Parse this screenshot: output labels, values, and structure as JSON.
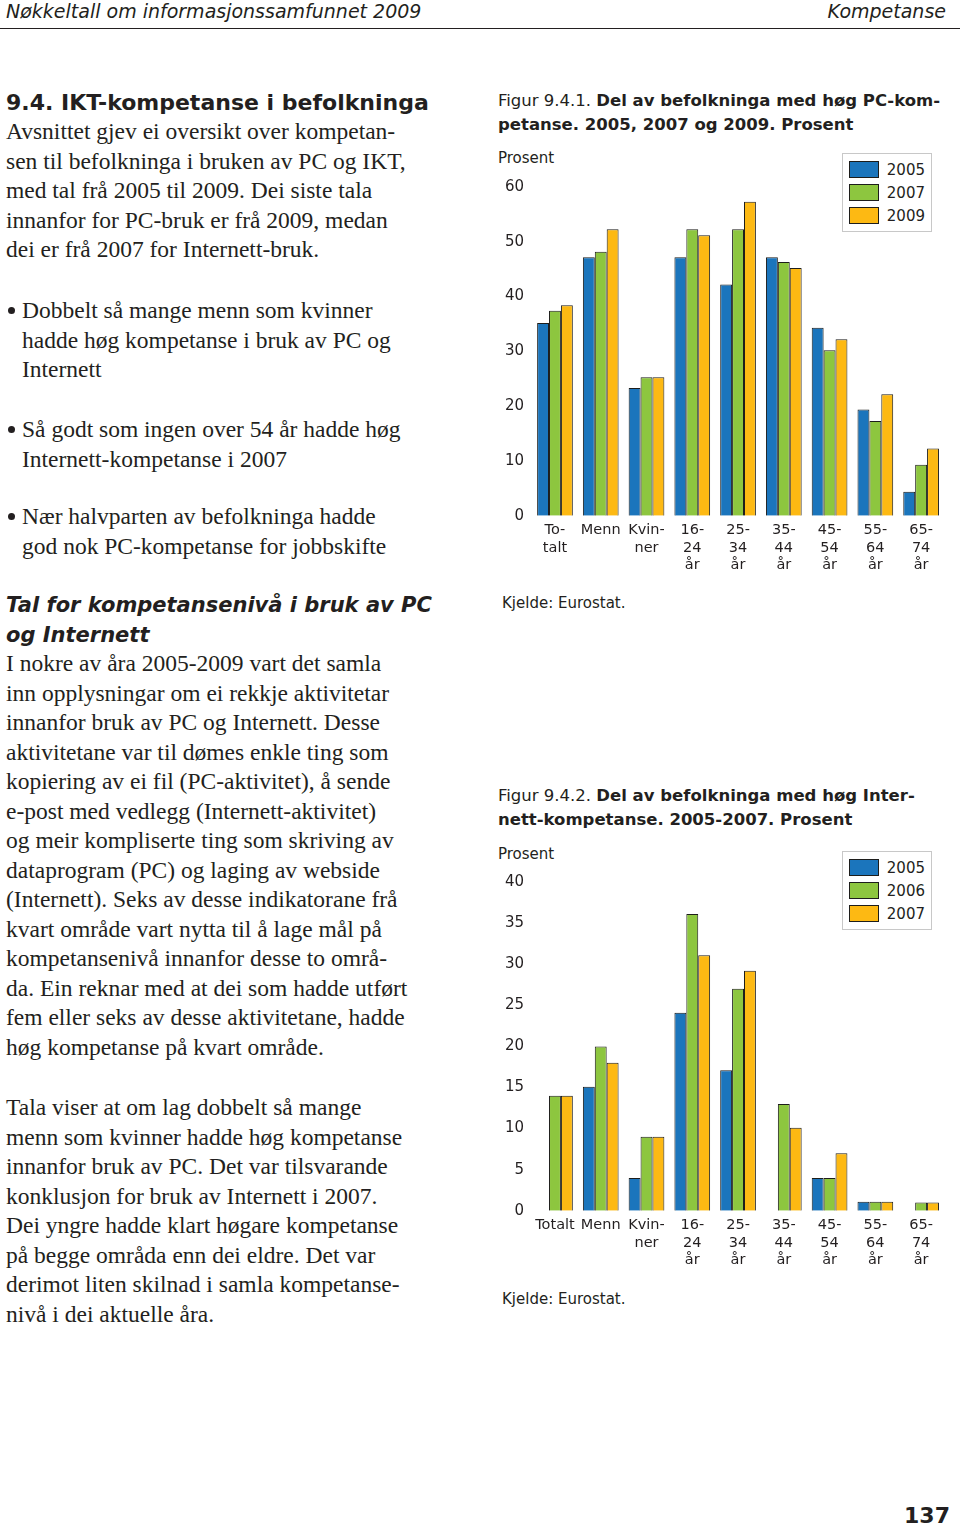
{
  "header": {
    "left": "Nøkkeltall om informasjonssamfunnet 2009",
    "right": "Kompetanse"
  },
  "section": {
    "heading": "9.4. IKT-kompetanse i befolkninga",
    "intro": [
      "Avsnittet gjev ei oversikt over kompetan-",
      "sen til befolkninga i bruken av PC og IKT,",
      "med tal frå 2005 til 2009. Dei siste tala",
      "innanfor for PC-bruk er frå 2009, medan",
      "dei er frå 2007 for Internett-bruk."
    ],
    "bullets": [
      [
        "Dobbelt så mange menn som kvinner",
        "hadde høg kompetanse i bruk av PC og",
        "Internett"
      ],
      [
        "Så godt som ingen over 54 år hadde høg",
        "Internett-kompetanse i 2007"
      ],
      [
        "Nær halvparten av befolkninga hadde",
        "god nok PC-kompetanse for jobbskifte"
      ]
    ],
    "subheading": [
      "Tal for kompetansenivå i bruk av PC",
      "og Internett"
    ],
    "paragraphs": [
      [
        "I nokre av åra 2005-2009 vart det samla",
        "inn opplysningar om ei rekkje aktivitetar",
        "innanfor bruk av PC og Internett. Desse",
        "aktivitetane var til dømes enkle ting som",
        "kopiering av ei fil (PC-aktivitet), å sende",
        "e-post med vedlegg (Internett-aktivitet)",
        "og meir kompliserte ting som skriving av",
        "dataprogram (PC) og laging av webside",
        "(Internett). Seks av desse indikatorane frå",
        "kvart område vart nytta til å lage mål på",
        "kompetansenivå innanfor desse to områ-",
        "da. Ein reknar med at dei som hadde utført",
        "fem eller seks av desse aktivitetane, hadde",
        "høg kompetanse på kvart område."
      ],
      [
        "Tala viser at om lag dobbelt så mange",
        "menn som kvinner hadde høg kompetanse",
        "innanfor bruk av PC. Det var tilsvarande",
        "konklusjon for bruk av Internett i 2007.",
        "Dei yngre hadde klart høgare kompetanse",
        "på begge områda enn dei eldre. Det var",
        "derimot liten skilnad i samla kompetanse-",
        "nivå i dei aktuelle åra."
      ]
    ]
  },
  "page_number": "137",
  "chart_data": [
    {
      "type": "bar",
      "figure": "Figur 9.4.1.",
      "title": [
        "Del av befolkninga med høg PC-kom-",
        "petanse. 2005, 2007 og 2009. Prosent"
      ],
      "ylabel": "Prosent",
      "source": "Kjelde: Eurostat.",
      "categories": [
        [
          "To-",
          "talt"
        ],
        [
          "Menn"
        ],
        [
          "Kvin-",
          "ner"
        ],
        [
          "16-",
          "24",
          "år"
        ],
        [
          "25-",
          "34",
          "år"
        ],
        [
          "35-",
          "44",
          "år"
        ],
        [
          "45-",
          "54",
          "år"
        ],
        [
          "55-",
          "64",
          "år"
        ],
        [
          "65-",
          "74",
          "år"
        ]
      ],
      "series": [
        {
          "name": "2005",
          "color": "#1b75bc",
          "values": [
            35.2,
            47.2,
            23.3,
            47.2,
            42.2,
            47.2,
            34.3,
            19.4,
            4.4
          ]
        },
        {
          "name": "2007",
          "color": "#8dc63f",
          "values": [
            37.4,
            48.2,
            25.3,
            52.3,
            52.3,
            46.3,
            30.2,
            17.3,
            9.3
          ]
        },
        {
          "name": "2009",
          "color": "#fdb913",
          "values": [
            38.4,
            52.3,
            25.3,
            51.2,
            57.3,
            45.2,
            32.2,
            22.2,
            12.3
          ]
        }
      ],
      "ylim": [
        0,
        60
      ],
      "yticks": [
        0,
        10,
        20,
        30,
        40,
        50,
        60
      ],
      "grid": false,
      "legend": "top-right"
    },
    {
      "type": "bar",
      "figure": "Figur 9.4.2.",
      "title": [
        "Del av befolkninga med høg Inter-",
        "nett-kompetanse. 2005-2007. Prosent"
      ],
      "ylabel": "Prosent",
      "source": "Kjelde: Eurostat.",
      "categories": [
        [
          "Totalt"
        ],
        [
          "Menn"
        ],
        [
          "Kvin-",
          "ner"
        ],
        [
          "16-",
          "24",
          "år"
        ],
        [
          "25-",
          "34",
          "år"
        ],
        [
          "35-",
          "44",
          "år"
        ],
        [
          "45-",
          "54",
          "år"
        ],
        [
          "55-",
          "64",
          "år"
        ],
        [
          "65-",
          "74",
          "år"
        ]
      ],
      "series": [
        {
          "name": "2005",
          "color": "#1b75bc",
          "values": [
            null,
            15.1,
            4.0,
            24.1,
            17.1,
            null,
            4.0,
            1.1,
            0
          ]
        },
        {
          "name": "2006",
          "color": "#8dc63f",
          "values": [
            14.0,
            20.0,
            9.0,
            36.1,
            27.0,
            13.0,
            4.0,
            1.1,
            1.0
          ]
        },
        {
          "name": "2007",
          "color": "#fdb913",
          "values": [
            14.0,
            18.0,
            9.0,
            31.1,
            29.2,
            10.1,
            7.0,
            1.1,
            1.0
          ]
        }
      ],
      "ylim": [
        0,
        40
      ],
      "yticks": [
        0,
        5,
        10,
        15,
        20,
        25,
        30,
        35,
        40
      ],
      "grid": false,
      "legend": "top-right"
    }
  ]
}
